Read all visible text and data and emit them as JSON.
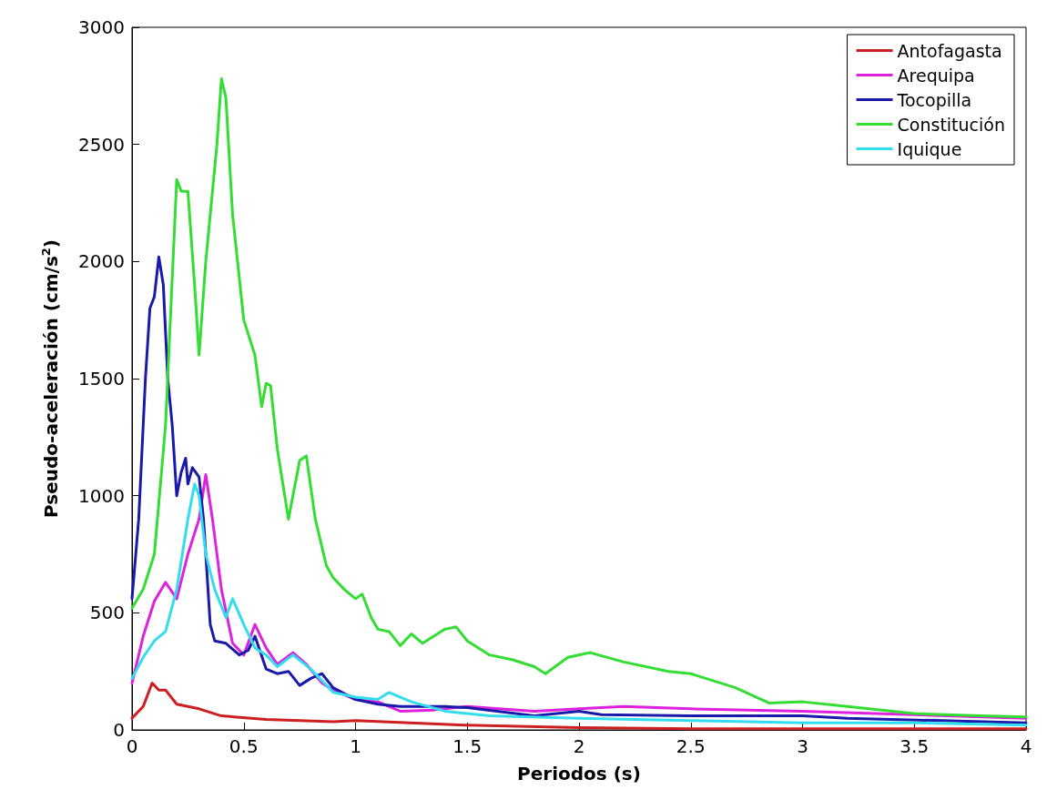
{
  "chart_data": {
    "type": "line",
    "xlabel": "Periodos (s)",
    "ylabel": "Pseudo-aceleración (cm/s$^{2}$)",
    "xlim": [
      0,
      4
    ],
    "xticks": [
      0,
      0.5,
      1,
      1.5,
      2,
      2.5,
      3,
      3.5,
      4
    ],
    "ylim": [
      0,
      3000
    ],
    "yticks": [
      0,
      500,
      1000,
      1500,
      2000,
      2500,
      3000
    ],
    "grid": false,
    "legend": "top right",
    "line_style": "solid",
    "marker": "none",
    "series": [
      {
        "name": "Antofagasta",
        "color": "#cc2020",
        "x": [
          0,
          0.05,
          0.09,
          0.12,
          0.15,
          0.2,
          0.3,
          0.4,
          0.6,
          0.9,
          1.0,
          1.5,
          2.0,
          2.5,
          3.0,
          4.0
        ],
        "values": [
          50,
          100,
          200,
          170,
          170,
          110,
          90,
          60,
          45,
          35,
          40,
          20,
          10,
          5,
          5,
          5
        ]
      },
      {
        "name": "Arequipa",
        "color": "#dd22dd",
        "x": [
          0,
          0.05,
          0.1,
          0.15,
          0.2,
          0.25,
          0.3,
          0.33,
          0.36,
          0.4,
          0.45,
          0.5,
          0.55,
          0.6,
          0.65,
          0.72,
          0.78,
          0.85,
          0.9,
          1.0,
          1.1,
          1.2,
          1.35,
          1.5,
          1.8,
          2.0,
          2.2,
          2.5,
          3.0,
          4.0
        ],
        "values": [
          200,
          400,
          550,
          630,
          560,
          750,
          900,
          1090,
          900,
          600,
          370,
          320,
          450,
          350,
          280,
          330,
          280,
          200,
          170,
          130,
          120,
          80,
          85,
          100,
          80,
          90,
          100,
          90,
          80,
          50
        ]
      },
      {
        "name": "Tocopilla",
        "color": "#1a1aaa",
        "x": [
          0,
          0.03,
          0.06,
          0.08,
          0.1,
          0.12,
          0.14,
          0.16,
          0.18,
          0.2,
          0.22,
          0.24,
          0.25,
          0.27,
          0.3,
          0.32,
          0.35,
          0.37,
          0.42,
          0.48,
          0.52,
          0.55,
          0.6,
          0.65,
          0.7,
          0.75,
          0.8,
          0.85,
          0.9,
          1.0,
          1.1,
          1.2,
          1.4,
          1.5,
          1.8,
          2.0,
          2.1,
          2.5,
          3.0,
          3.2,
          4.0
        ],
        "values": [
          560,
          900,
          1500,
          1800,
          1850,
          2020,
          1900,
          1500,
          1300,
          1000,
          1100,
          1160,
          1050,
          1120,
          1080,
          900,
          450,
          380,
          370,
          320,
          340,
          400,
          260,
          240,
          250,
          190,
          220,
          240,
          180,
          130,
          110,
          100,
          100,
          95,
          60,
          80,
          65,
          60,
          60,
          50,
          30
        ]
      },
      {
        "name": "Constitución",
        "color": "#33dd33",
        "x": [
          0,
          0.05,
          0.1,
          0.15,
          0.2,
          0.22,
          0.25,
          0.28,
          0.3,
          0.33,
          0.38,
          0.4,
          0.42,
          0.45,
          0.5,
          0.55,
          0.58,
          0.6,
          0.62,
          0.65,
          0.7,
          0.75,
          0.78,
          0.82,
          0.87,
          0.9,
          0.95,
          1.0,
          1.03,
          1.07,
          1.1,
          1.15,
          1.2,
          1.25,
          1.3,
          1.4,
          1.45,
          1.5,
          1.6,
          1.7,
          1.8,
          1.85,
          1.95,
          2.05,
          2.2,
          2.4,
          2.5,
          2.7,
          2.85,
          3.0,
          3.2,
          3.5,
          3.8,
          4.0
        ],
        "values": [
          520,
          600,
          750,
          1300,
          2350,
          2300,
          2300,
          1900,
          1600,
          2000,
          2500,
          2780,
          2700,
          2200,
          1750,
          1600,
          1380,
          1480,
          1470,
          1200,
          900,
          1150,
          1170,
          900,
          700,
          650,
          600,
          560,
          580,
          480,
          430,
          420,
          360,
          410,
          370,
          430,
          440,
          380,
          320,
          300,
          270,
          240,
          310,
          330,
          290,
          250,
          240,
          180,
          115,
          120,
          100,
          70,
          60,
          55
        ]
      },
      {
        "name": "Iquique",
        "color": "#33ddee",
        "x": [
          0,
          0.05,
          0.1,
          0.15,
          0.2,
          0.25,
          0.28,
          0.3,
          0.33,
          0.37,
          0.42,
          0.45,
          0.5,
          0.55,
          0.6,
          0.65,
          0.72,
          0.8,
          0.9,
          1.0,
          1.1,
          1.15,
          1.25,
          1.4,
          1.6,
          2.0,
          2.5,
          3.0,
          3.5,
          4.0
        ],
        "values": [
          220,
          310,
          380,
          420,
          600,
          900,
          1050,
          1000,
          750,
          600,
          480,
          560,
          450,
          350,
          320,
          270,
          320,
          260,
          160,
          140,
          130,
          160,
          120,
          80,
          60,
          50,
          40,
          30,
          30,
          20
        ]
      }
    ]
  }
}
